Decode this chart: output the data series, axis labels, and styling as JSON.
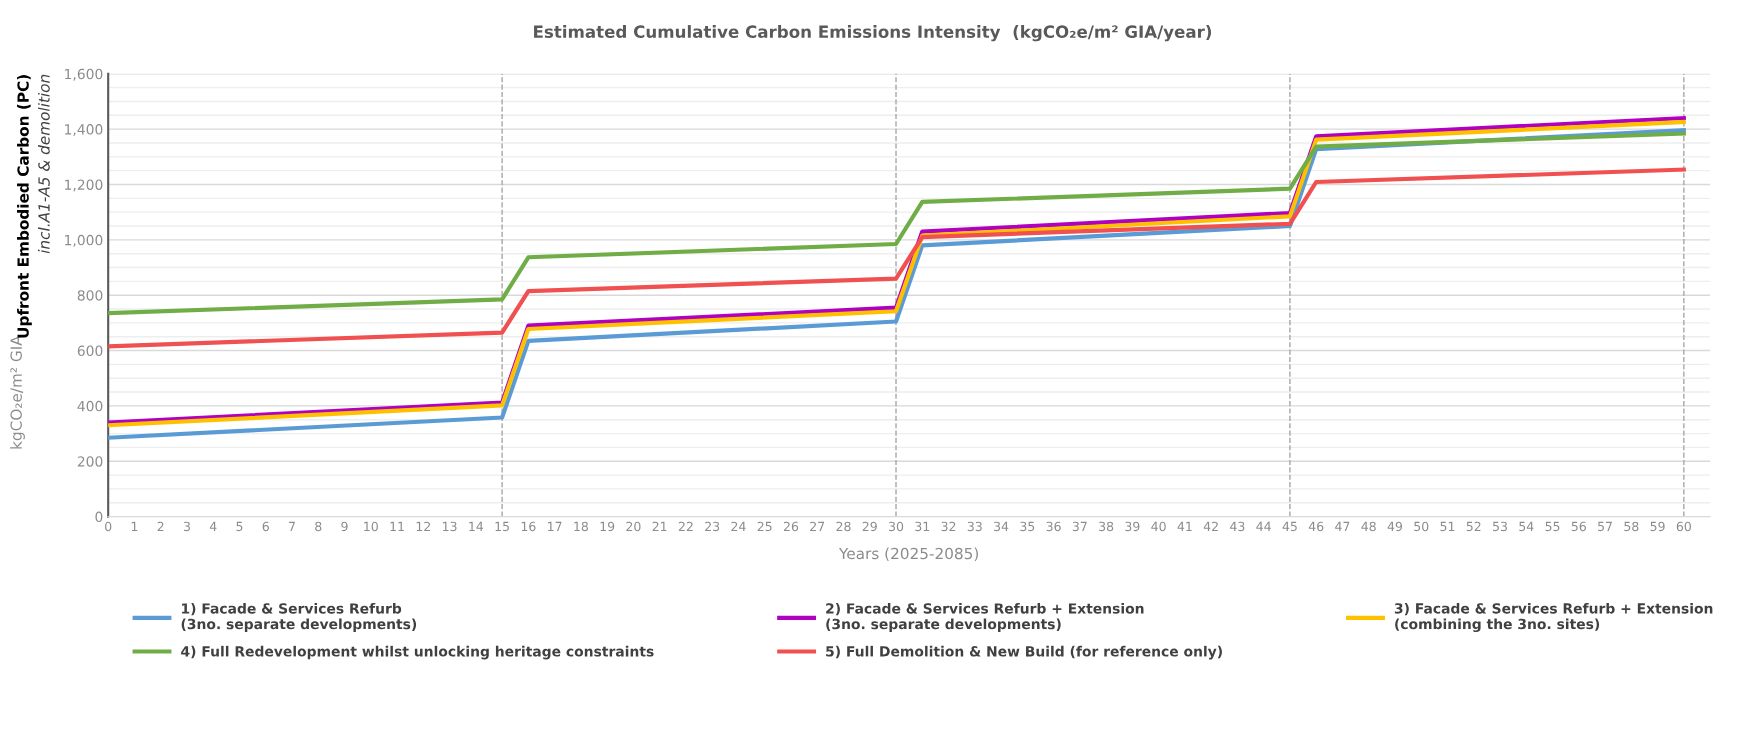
{
  "chart_data": {
    "type": "line",
    "title": "Estimated Cumulative Carbon Emissions Intensity  (kgCO₂e/m² GIA/year)",
    "xlabel": "Years (2025-2085)",
    "ylabel": "kgCO₂e/m² GIA",
    "annotations": [
      "Upfront Embodied Carbon (PC)",
      "incl.A1-A5 & demolition"
    ],
    "x": [
      0,
      15,
      16,
      30,
      31,
      45,
      46,
      60
    ],
    "series": [
      {
        "name": "1) Facade & Services Refurb\n(3no. separate developments)",
        "color": "#5b9bd5",
        "values": [
          285,
          358,
          635,
          705,
          980,
          1050,
          1328,
          1396
        ]
      },
      {
        "name": "2) Facade & Services Refurb + Extension\n(3no. separate developments)",
        "color": "#b000c0",
        "values": [
          340,
          412,
          690,
          755,
          1030,
          1097,
          1374,
          1440
        ]
      },
      {
        "name": "3) Facade & Services Refurb + Extension\n(combining the 3no. sites)",
        "color": "#ffc000",
        "values": [
          330,
          402,
          678,
          742,
          1015,
          1085,
          1362,
          1426
        ]
      },
      {
        "name": "4) Full Redevelopment whilst unlocking heritage constraints",
        "color": "#70ad47",
        "values": [
          735,
          785,
          937,
          985,
          1137,
          1185,
          1337,
          1384
        ]
      },
      {
        "name": "5) Full Demolition & New Build (for reference only)",
        "color": "#f05050",
        "values": [
          615,
          665,
          815,
          860,
          1010,
          1058,
          1209,
          1254
        ]
      }
    ],
    "xlim": [
      0,
      61
    ],
    "xticks": [
      0,
      1,
      2,
      3,
      4,
      5,
      6,
      7,
      8,
      9,
      10,
      11,
      12,
      13,
      14,
      15,
      16,
      17,
      18,
      19,
      20,
      21,
      22,
      23,
      24,
      25,
      26,
      27,
      28,
      29,
      30,
      31,
      32,
      33,
      34,
      35,
      36,
      37,
      38,
      39,
      40,
      41,
      42,
      43,
      44,
      45,
      46,
      47,
      48,
      49,
      50,
      51,
      52,
      53,
      54,
      55,
      56,
      57,
      58,
      59,
      60
    ],
    "ylim": [
      0,
      1600
    ],
    "yticks": [
      {
        "value": 0,
        "label": "0"
      },
      {
        "value": 50,
        "label": null
      },
      {
        "value": 100,
        "label": null
      },
      {
        "value": 150,
        "label": null
      },
      {
        "value": 200,
        "label": "200"
      },
      {
        "value": 250,
        "label": null
      },
      {
        "value": 300,
        "label": null
      },
      {
        "value": 350,
        "label": null
      },
      {
        "value": 400,
        "label": "400"
      },
      {
        "value": 450,
        "label": null
      },
      {
        "value": 500,
        "label": null
      },
      {
        "value": 550,
        "label": null
      },
      {
        "value": 600,
        "label": "600"
      },
      {
        "value": 650,
        "label": null
      },
      {
        "value": 700,
        "label": null
      },
      {
        "value": 750,
        "label": null
      },
      {
        "value": 800,
        "label": "800"
      },
      {
        "value": 850,
        "label": null
      },
      {
        "value": 900,
        "label": null
      },
      {
        "value": 950,
        "label": null
      },
      {
        "value": 1000,
        "label": "1,000"
      },
      {
        "value": 1050,
        "label": null
      },
      {
        "value": 1100,
        "label": null
      },
      {
        "value": 1150,
        "label": null
      },
      {
        "value": 1200,
        "label": "1,200"
      },
      {
        "value": 1250,
        "label": null
      },
      {
        "value": 1300,
        "label": null
      },
      {
        "value": 1350,
        "label": null
      },
      {
        "value": 1400,
        "label": "1,400"
      },
      {
        "value": 1450,
        "label": null
      },
      {
        "value": 1500,
        "label": null
      },
      {
        "value": 1550,
        "label": null
      },
      {
        "value": 1600,
        "label": "1,600"
      }
    ],
    "ref_lines": [
      {
        "axis": "x",
        "value": 15,
        "color": "#a6a6a6",
        "line_style": "dashed"
      },
      {
        "axis": "x",
        "value": 30,
        "color": "#a6a6a6",
        "line_style": "dashed"
      },
      {
        "axis": "x",
        "value": 45,
        "color": "#a6a6a6",
        "line_style": "dashed"
      },
      {
        "axis": "x",
        "value": 60,
        "color": "#a6a6a6",
        "line_style": "dashed"
      }
    ],
    "grid": "y",
    "legend": "bottom",
    "marker": "none",
    "line_style": "solid"
  }
}
